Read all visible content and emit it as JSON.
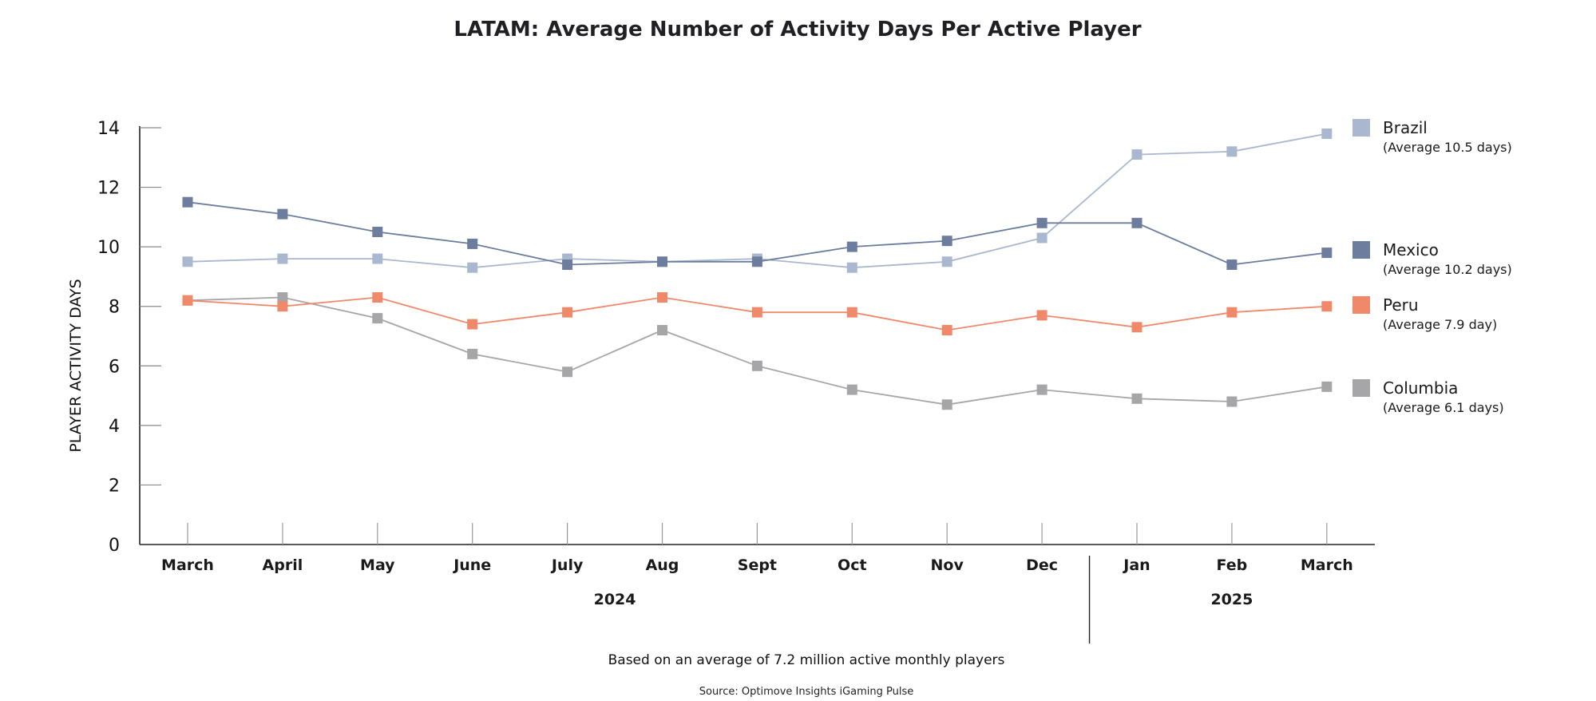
{
  "chart_data": {
    "type": "line",
    "title": "LATAM: Average Number of Activity Days Per Active Player",
    "ylabel": "PLAYER ACTIVITY DAYS",
    "xlabel": "",
    "ylim": [
      0,
      14
    ],
    "yticks": [
      "0",
      "2",
      "4",
      "6",
      "8",
      "10",
      "12",
      "14"
    ],
    "categories": [
      "March",
      "April",
      "May",
      "June",
      "July",
      "Aug",
      "Sept",
      "Oct",
      "Nov",
      "Dec",
      "Jan",
      "Feb",
      "March"
    ],
    "year_groups": [
      {
        "label": "2024",
        "from": 0,
        "to": 9
      },
      {
        "label": "2025",
        "from": 10,
        "to": 12
      }
    ],
    "series": [
      {
        "name": "Brazil",
        "subtitle": "(Average 10.5 days)",
        "color": "#a9b8cf",
        "values": [
          9.5,
          9.6,
          9.6,
          9.3,
          9.6,
          9.5,
          9.6,
          9.3,
          9.5,
          10.3,
          13.1,
          13.2,
          13.8
        ]
      },
      {
        "name": "Mexico",
        "subtitle": "(Average 10.2 days)",
        "color": "#6c7d9e",
        "values": [
          11.5,
          11.1,
          10.5,
          10.1,
          9.4,
          9.5,
          9.5,
          10.0,
          10.2,
          10.8,
          10.8,
          9.4,
          9.8
        ]
      },
      {
        "name": "Peru",
        "subtitle": "(Average 7.9 day)",
        "color": "#f0896a",
        "values": [
          8.2,
          8.0,
          8.3,
          7.4,
          7.8,
          8.3,
          7.8,
          7.8,
          7.2,
          7.7,
          7.3,
          7.8,
          8.0
        ]
      },
      {
        "name": "Columbia",
        "subtitle": "(Average 6.1 days)",
        "color": "#a6a6a8",
        "values": [
          8.2,
          8.3,
          7.6,
          6.4,
          5.8,
          7.2,
          6.0,
          5.2,
          4.7,
          5.2,
          4.9,
          4.8,
          5.3
        ]
      }
    ],
    "legend_position": "right",
    "note": "Based on an average of 7.2 million active monthly players",
    "source": "Source: Optimove Insights iGaming Pulse"
  }
}
